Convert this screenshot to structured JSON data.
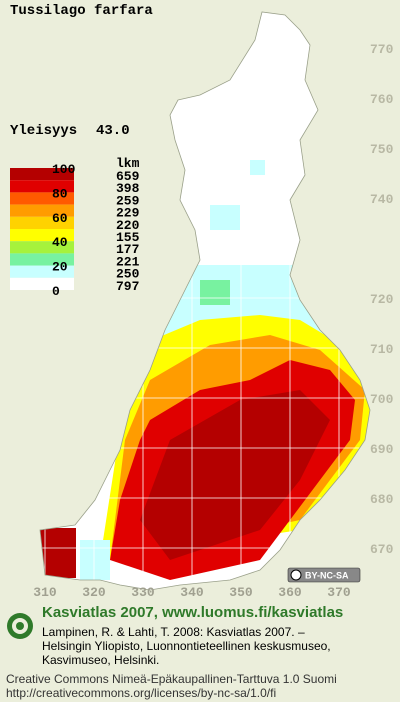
{
  "header": {
    "title": "Tussilago farfara",
    "frequency_label": "Yleisyys",
    "frequency_value": "43.0"
  },
  "legend": {
    "scale_labels": [
      100,
      80,
      60,
      40,
      20,
      0
    ],
    "count_header": "lkm",
    "counts": [
      659,
      398,
      259,
      229,
      220,
      155,
      177,
      221,
      250,
      797
    ],
    "colors": [
      "#b40000",
      "#e00000",
      "#ff5a00",
      "#ff9c00",
      "#ffd200",
      "#ffff00",
      "#a6f23c",
      "#78f2a0",
      "#c8ffff",
      "#ffffff"
    ]
  },
  "map": {
    "yticks": [
      770,
      760,
      750,
      740,
      720,
      710,
      700,
      690,
      680,
      670
    ],
    "xticks": [
      310,
      320,
      330,
      340,
      350,
      360,
      370
    ],
    "badge": "BY-NC-SA"
  },
  "footer": {
    "site": "Kasviatlas 2007, www.luomus.fi/kasviatlas",
    "citation": [
      "Lampinen, R. & Lahti, T. 2008: Kasviatlas 2007. –",
      "Helsingin Yliopisto, Luonnontieteellinen keskusmuseo,",
      "Kasvimuseo, Helsinki."
    ],
    "license": [
      "Creative Commons Nimeä-Epäkaupallinen-Tarttuva 1.0 Suomi",
      "http://creativecommons.org/licenses/by-nc-sa/1.0/fi"
    ]
  }
}
